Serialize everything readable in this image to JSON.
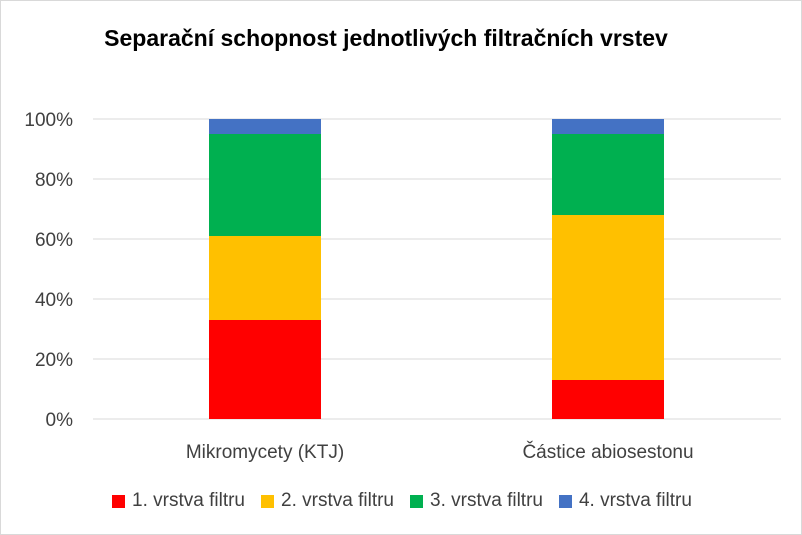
{
  "chart_data": {
    "type": "bar",
    "stacked": true,
    "title": "Separační schopnost jednotlivých filtračních vrstev",
    "xlabel": "",
    "ylabel": "",
    "ylim": [
      0,
      100
    ],
    "yticks": [
      "0%",
      "20%",
      "40%",
      "60%",
      "80%",
      "100%"
    ],
    "categories": [
      "Mikromycety (KTJ)",
      "Částice abiosestonu"
    ],
    "series": [
      {
        "name": "1. vrstva filtru",
        "color": "#ff0000",
        "values": [
          33,
          13
        ]
      },
      {
        "name": "2. vrstva filtru",
        "color": "#ffc000",
        "values": [
          28,
          55
        ]
      },
      {
        "name": "3. vrstva filtru",
        "color": "#00b050",
        "values": [
          34,
          27
        ]
      },
      {
        "name": "4. vrstva filtru",
        "color": "#4472c4",
        "values": [
          5,
          5
        ]
      }
    ],
    "grid": true,
    "legend_position": "bottom"
  }
}
